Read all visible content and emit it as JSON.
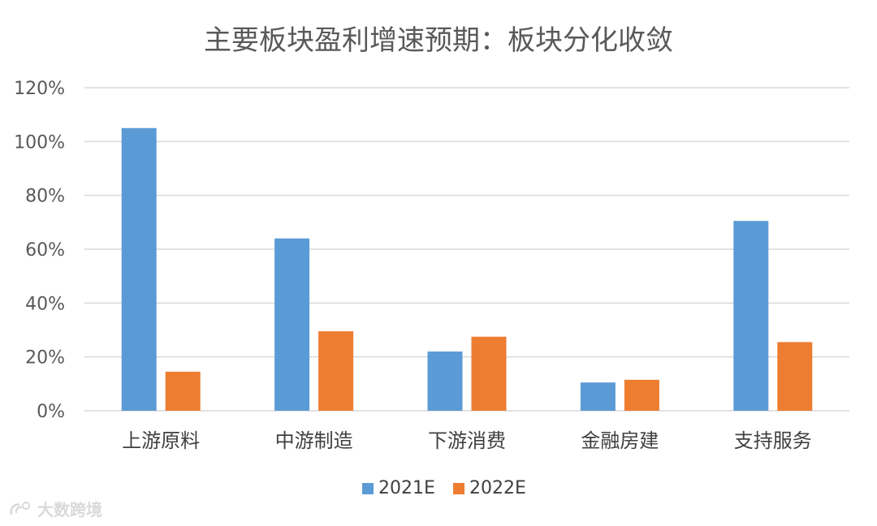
{
  "chart_data": {
    "type": "bar",
    "title": "主要板块盈利增速预期：板块分化收敛",
    "categories": [
      "上游原料",
      "中游制造",
      "下游消费",
      "金融房建",
      "支持服务"
    ],
    "series": [
      {
        "name": "2021E",
        "color": "#5B9BD5",
        "values": [
          105,
          64,
          22,
          10.5,
          70.5
        ]
      },
      {
        "name": "2022E",
        "color": "#ED7D31",
        "values": [
          14.5,
          29.5,
          27.5,
          11.5,
          25.5
        ]
      }
    ],
    "ylim": [
      0,
      120
    ],
    "yticks": [
      "0%",
      "20%",
      "40%",
      "60%",
      "80%",
      "100%",
      "120%"
    ],
    "ytick_values": [
      0,
      20,
      40,
      60,
      80,
      100,
      120
    ],
    "grid": true,
    "legend_position": "bottom",
    "gridline_color": "#d9d9d9"
  },
  "watermark": {
    "text": "大数跨境",
    "icon": "logo-swirl-icon"
  }
}
